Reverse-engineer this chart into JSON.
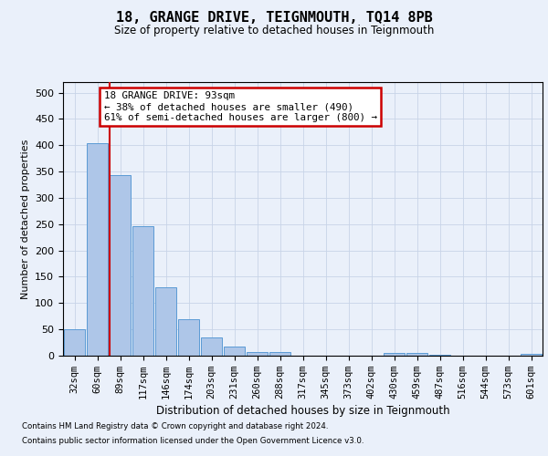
{
  "title": "18, GRANGE DRIVE, TEIGNMOUTH, TQ14 8PB",
  "subtitle": "Size of property relative to detached houses in Teignmouth",
  "xlabel": "Distribution of detached houses by size in Teignmouth",
  "ylabel": "Number of detached properties",
  "footnote1": "Contains HM Land Registry data © Crown copyright and database right 2024.",
  "footnote2": "Contains public sector information licensed under the Open Government Licence v3.0.",
  "categories": [
    "32sqm",
    "60sqm",
    "89sqm",
    "117sqm",
    "146sqm",
    "174sqm",
    "203sqm",
    "231sqm",
    "260sqm",
    "288sqm",
    "317sqm",
    "345sqm",
    "373sqm",
    "402sqm",
    "430sqm",
    "459sqm",
    "487sqm",
    "516sqm",
    "544sqm",
    "573sqm",
    "601sqm"
  ],
  "values": [
    50,
    403,
    343,
    246,
    130,
    70,
    35,
    18,
    7,
    7,
    0,
    0,
    0,
    0,
    5,
    5,
    2,
    0,
    0,
    0,
    3
  ],
  "bar_color": "#aec6e8",
  "bar_edge_color": "#5b9bd5",
  "grid_color": "#c8d4e8",
  "background_color": "#eaf0fa",
  "vline_color": "#cc0000",
  "annotation_line1": "18 GRANGE DRIVE: 93sqm",
  "annotation_line2": "← 38% of detached houses are smaller (490)",
  "annotation_line3": "61% of semi-detached houses are larger (800) →",
  "annotation_box_color": "#ffffff",
  "annotation_box_edge": "#cc0000",
  "ylim": [
    0,
    520
  ],
  "yticks": [
    0,
    50,
    100,
    150,
    200,
    250,
    300,
    350,
    400,
    450,
    500
  ],
  "vline_pos": 1.55
}
